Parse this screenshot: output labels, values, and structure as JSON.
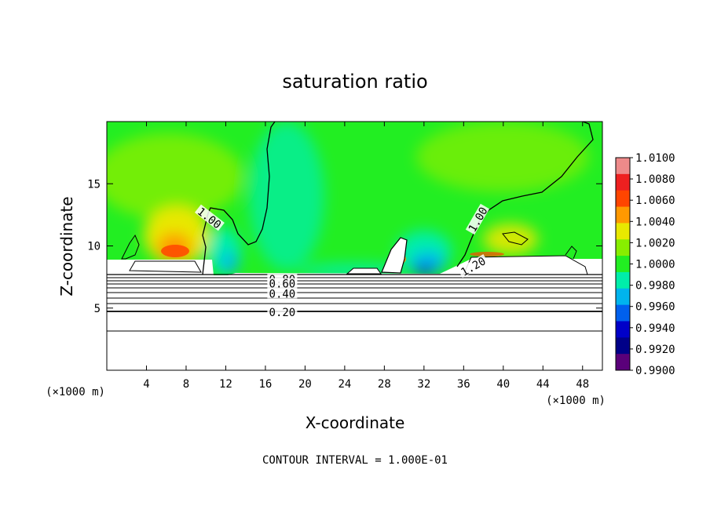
{
  "chart_data": {
    "type": "heatmap",
    "title": "saturation ratio",
    "xlabel": "X-coordinate",
    "ylabel": "Z-coordinate",
    "x_unit": "(×1000 m)",
    "x_unit_right": "(×1000 m)",
    "xlim": [
      0,
      50
    ],
    "ylim": [
      0,
      20
    ],
    "x_ticks": [
      4,
      8,
      12,
      16,
      20,
      24,
      28,
      32,
      36,
      40,
      44,
      48
    ],
    "y_ticks": [
      5,
      10,
      15
    ],
    "colorbar": {
      "levels": [
        "1.0100",
        "1.0080",
        "1.0060",
        "1.0040",
        "1.0020",
        "1.0000",
        "0.9980",
        "0.9960",
        "0.9940",
        "0.9920",
        "0.9900"
      ],
      "colors": [
        "#ee8a8a",
        "#ee2020",
        "#ff4500",
        "#ff9900",
        "#e8e800",
        "#88ee00",
        "#22ee22",
        "#00eeaa",
        "#00b4ee",
        "#0060ee",
        "#0000c8",
        "#000088",
        "#5a007a"
      ]
    },
    "contour_labels": [
      {
        "text": "1.00",
        "x": 10.3,
        "z": 12.2,
        "angle": 38
      },
      {
        "text": "1.00",
        "x": 37.5,
        "z": 12.1,
        "angle": -60
      },
      {
        "text": "1.20",
        "x": 37.0,
        "z": 8.3,
        "angle": -30
      },
      {
        "text": "0.80",
        "x": 17.7,
        "z": 7.25,
        "angle": 0
      },
      {
        "text": "0.60",
        "x": 17.7,
        "z": 6.9,
        "angle": 0
      },
      {
        "text": "0.40",
        "x": 17.7,
        "z": 6.1,
        "angle": 0
      },
      {
        "text": "0.20",
        "x": 17.7,
        "z": 4.6,
        "angle": 0
      }
    ],
    "footer": "CONTOUR INTERVAL = 1.000E-01"
  }
}
